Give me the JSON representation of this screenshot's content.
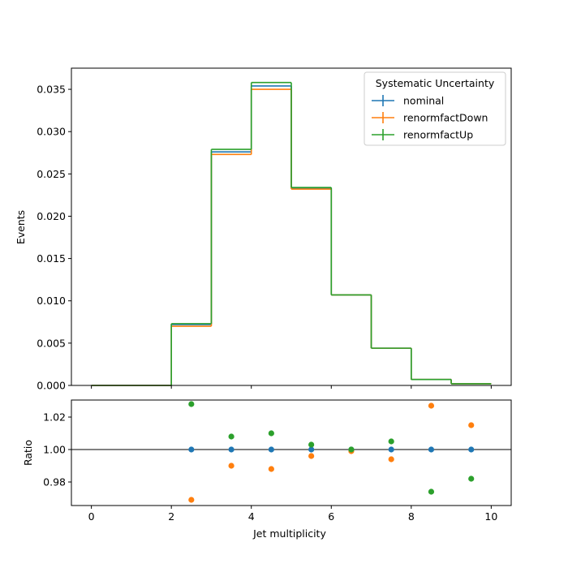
{
  "chart_data": [
    {
      "type": "line",
      "drawstyle": "step",
      "ylabel": "Events",
      "xlim": [
        -0.5,
        10.5
      ],
      "ylim": [
        0,
        0.0375
      ],
      "bin_edges": [
        0,
        1,
        2,
        3,
        4,
        5,
        6,
        7,
        8,
        9,
        10
      ],
      "y_ticks": [
        "0.000",
        "0.005",
        "0.010",
        "0.015",
        "0.020",
        "0.025",
        "0.030",
        "0.035"
      ],
      "y_tick_values": [
        0,
        0.005,
        0.01,
        0.015,
        0.02,
        0.025,
        0.03,
        0.035
      ],
      "legend": {
        "title": "Systematic Uncertainty",
        "placement": "top-right"
      },
      "series": [
        {
          "name": "nominal",
          "color": "#1f77b4",
          "values": [
            0,
            0,
            0.0072,
            0.0276,
            0.0354,
            0.0233,
            0.0107,
            0.0044,
            0.0007,
            0.0002
          ]
        },
        {
          "name": "renormfactDown",
          "color": "#ff7f0e",
          "values": [
            0,
            0,
            0.007,
            0.0273,
            0.035,
            0.0232,
            0.0107,
            0.0044,
            0.0007,
            0.0002
          ]
        },
        {
          "name": "renormfactUp",
          "color": "#2ca02c",
          "values": [
            0,
            0,
            0.0073,
            0.0279,
            0.0358,
            0.0234,
            0.0107,
            0.0044,
            0.0007,
            0.0002
          ]
        }
      ]
    },
    {
      "type": "scatter",
      "xlabel": "Jet multiplicity",
      "ylabel": "Ratio",
      "xlim": [
        -0.5,
        10.5
      ],
      "ylim": [
        0.9655,
        1.0305
      ],
      "reference_line": 1.0,
      "x_ticks": [
        "0",
        "2",
        "4",
        "6",
        "8",
        "10"
      ],
      "x_tick_values": [
        0,
        2,
        4,
        6,
        8,
        10
      ],
      "y_ticks": [
        "0.98",
        "1.00",
        "1.02"
      ],
      "y_tick_values": [
        0.98,
        1.0,
        1.02
      ],
      "x": [
        2.5,
        3.5,
        4.5,
        5.5,
        6.5,
        7.5,
        8.5,
        9.5
      ],
      "series": [
        {
          "name": "nominal",
          "color": "#1f77b4",
          "values": [
            1.0,
            1.0,
            1.0,
            1.0,
            1.0,
            1.0,
            1.0,
            1.0
          ]
        },
        {
          "name": "renormfactDown",
          "color": "#ff7f0e",
          "values": [
            0.969,
            0.99,
            0.988,
            0.996,
            0.999,
            0.994,
            1.027,
            1.015
          ]
        },
        {
          "name": "renormfactUp",
          "color": "#2ca02c",
          "values": [
            1.028,
            1.008,
            1.01,
            1.003,
            1.0,
            1.005,
            0.974,
            0.982
          ]
        }
      ]
    }
  ]
}
